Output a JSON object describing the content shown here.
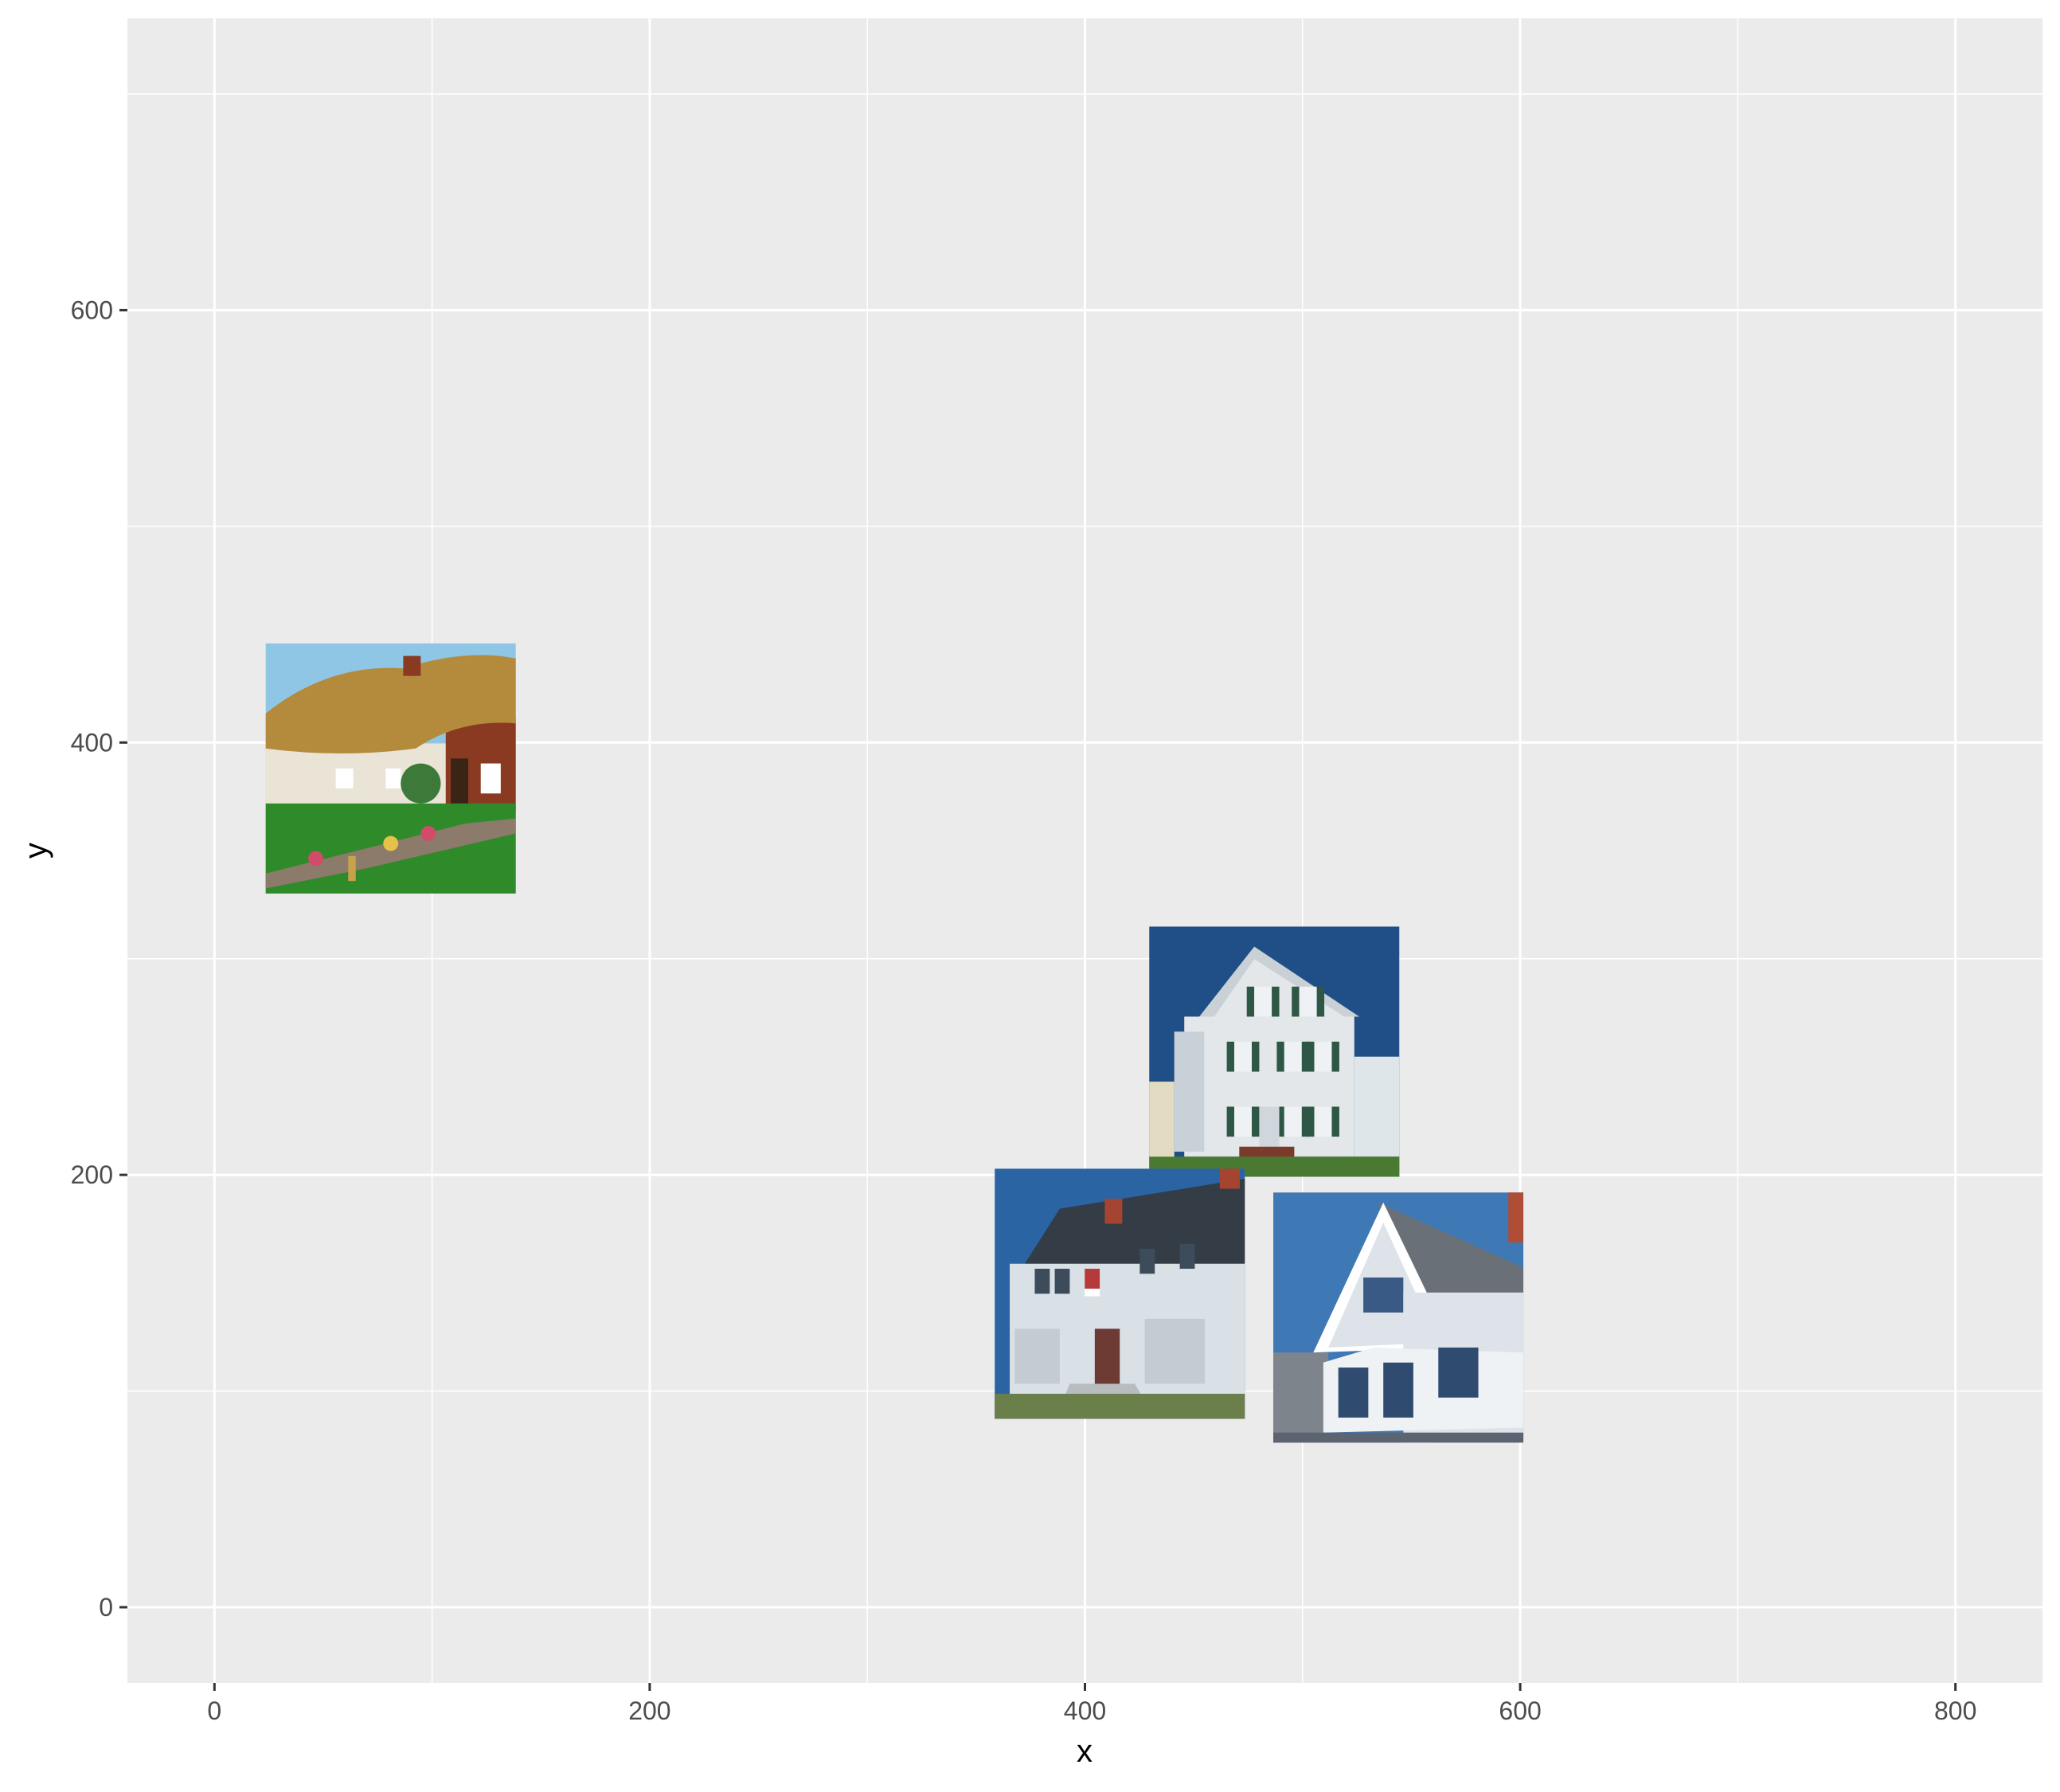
{
  "chart_data": {
    "type": "scatter",
    "title": "",
    "xlabel": "x",
    "ylabel": "y",
    "xlim": [
      -40,
      840
    ],
    "ylim": [
      -35,
      735
    ],
    "x_ticks": [
      0,
      200,
      400,
      600,
      800
    ],
    "y_ticks": [
      0,
      200,
      400,
      600
    ],
    "x_minor": [
      100,
      300,
      500,
      700
    ],
    "y_minor": [
      100,
      300,
      500,
      700
    ],
    "grid": true,
    "marker": "image",
    "points": [
      {
        "name": "thatched-cottage",
        "x": 81,
        "y": 388,
        "icon": "thatched-cottage-photo",
        "colors": {
          "sky": "#8fc6e6",
          "roof": "#b48a3c",
          "wall": "#e9e4d6",
          "grass": "#2f8a2a",
          "brick": "#8b3a22"
        }
      },
      {
        "name": "white-three-story-house",
        "x": 487,
        "y": 257,
        "icon": "white-house-green-shutters-photo",
        "colors": {
          "sky": "#1f4f86",
          "wall": "#e3e7ea",
          "shutter": "#2e5845",
          "roof": "#c9d0d6",
          "grass": "#4a7a32"
        }
      },
      {
        "name": "colonial-house",
        "x": 416,
        "y": 145,
        "icon": "colonial-house-flag-photo",
        "colors": {
          "sky": "#2b64a3",
          "wall": "#d9e0e6",
          "roof": "#343c46",
          "chimney": "#a54431",
          "ground": "#6a7f4a"
        }
      },
      {
        "name": "gable-house",
        "x": 544,
        "y": 134,
        "icon": "gable-house-bay-window-photo",
        "colors": {
          "sky": "#3f79b5",
          "wall": "#dde3e8",
          "roof": "#6a7078",
          "chimney": "#b04d36",
          "trim": "#ffffff"
        }
      }
    ]
  }
}
